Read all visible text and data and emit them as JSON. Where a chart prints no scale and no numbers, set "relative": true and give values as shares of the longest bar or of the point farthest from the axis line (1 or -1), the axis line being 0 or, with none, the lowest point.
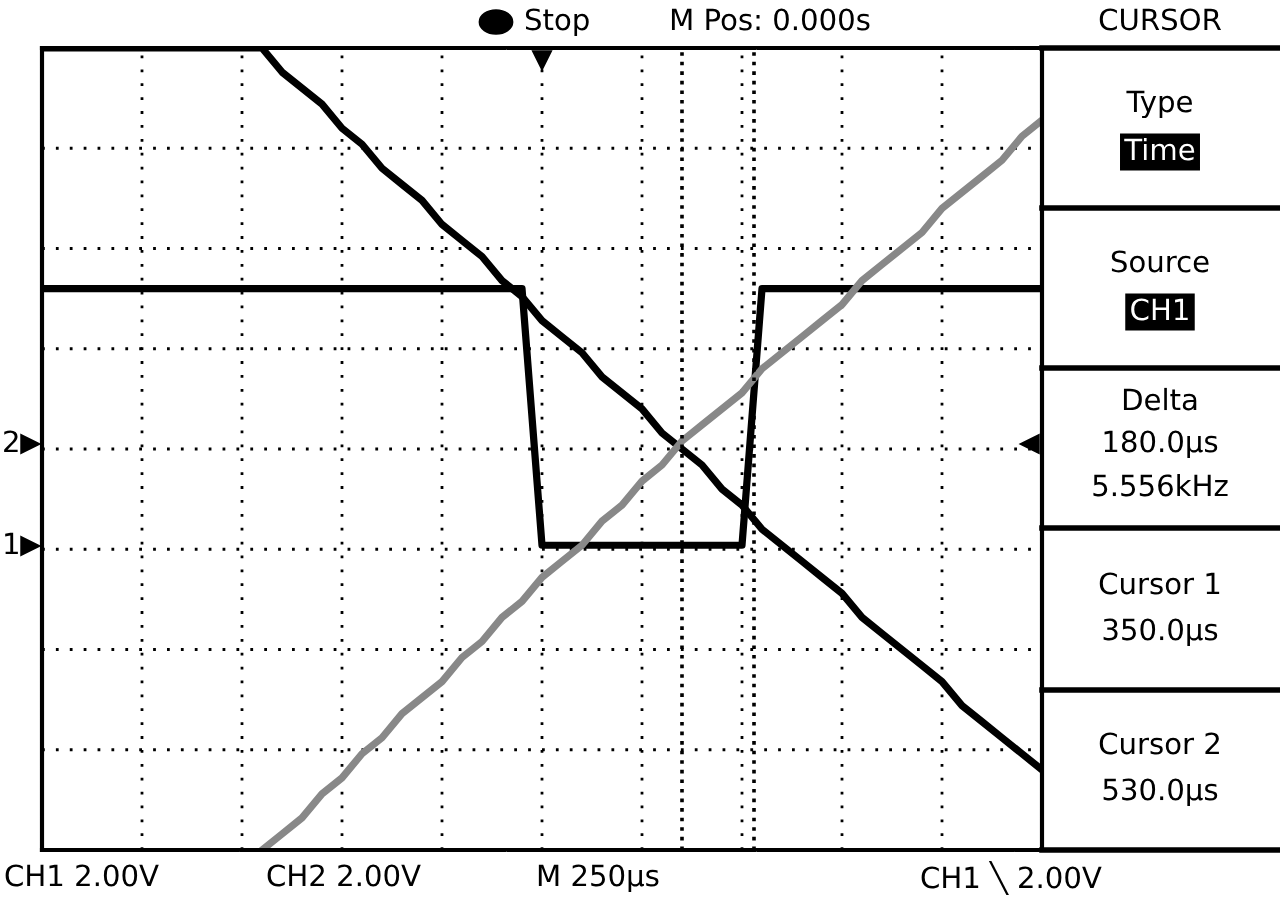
{
  "chart_data": {
    "type": "line",
    "relative": true,
    "grid": true,
    "line_style": "solid",
    "marker": "none",
    "categories": [
      null,
      null,
      null,
      null,
      null,
      null,
      null,
      null,
      null,
      null,
      null,
      null,
      null,
      null,
      null,
      null,
      null,
      null,
      null,
      null,
      null,
      null,
      null,
      null,
      null,
      null,
      null,
      null,
      null,
      null,
      null,
      null,
      null,
      null,
      null,
      null,
      null,
      null,
      null,
      null,
      null,
      null,
      null,
      null,
      null,
      null,
      null,
      null,
      null,
      null,
      null
    ],
    "series": [
      {
        "color": "#000000",
        "values": [
          0.7,
          0.7,
          0.7,
          0.7,
          0.7,
          0.7,
          0.7,
          0.7,
          0.7,
          0.7,
          0.7,
          0.7,
          0.7,
          0.7,
          0.7,
          0.7,
          0.7,
          0.7,
          0.7,
          0.7,
          0.7,
          0.7,
          0.7,
          0.7,
          0.7,
          0.38,
          0.38,
          0.38,
          0.38,
          0.38,
          0.38,
          0.38,
          0.38,
          0.38,
          0.38,
          0.38,
          0.7,
          0.7,
          0.7,
          0.7,
          0.7,
          0.7,
          0.7,
          0.7,
          0.7,
          0.7,
          0.7,
          0.7,
          0.7,
          0.7,
          0.7
        ]
      },
      {
        "color": "#000000",
        "values": [
          1.0,
          1.0,
          1.0,
          1.0,
          1.0,
          1.0,
          1.0,
          1.0,
          1.0,
          1.0,
          1.0,
          1.0,
          0.97,
          0.95,
          0.93,
          0.9,
          0.88,
          0.85,
          0.83,
          0.81,
          0.78,
          0.76,
          0.74,
          0.71,
          0.69,
          0.66,
          0.64,
          0.62,
          0.59,
          0.57,
          0.55,
          0.52,
          0.5,
          0.48,
          0.45,
          0.43,
          0.4,
          0.38,
          0.36,
          0.34,
          0.32,
          0.29,
          0.27,
          0.25,
          0.23,
          0.21,
          0.18,
          0.16,
          0.14,
          0.12,
          0.1
        ]
      },
      {
        "color": "#888888",
        "values": [
          null,
          null,
          null,
          null,
          null,
          null,
          null,
          null,
          null,
          null,
          null,
          0.0,
          0.02,
          0.04,
          0.07,
          0.09,
          0.12,
          0.14,
          0.17,
          0.19,
          0.21,
          0.24,
          0.26,
          0.29,
          0.31,
          0.34,
          0.36,
          0.38,
          0.41,
          0.43,
          0.46,
          0.48,
          0.51,
          0.53,
          0.55,
          0.57,
          0.6,
          0.62,
          0.64,
          0.66,
          0.68,
          0.71,
          0.73,
          0.75,
          0.77,
          0.8,
          0.82,
          0.84,
          0.86,
          0.89,
          0.91
        ]
      }
    ],
    "annotations": [
      "Stop",
      "M Pos: 0.000s",
      "CURSOR",
      "Type",
      "Time",
      "Source",
      "CH1",
      "Delta",
      "180.0µs",
      "5.556kHz",
      "Cursor 1",
      "350.0µs",
      "Cursor 2",
      "530.0µs",
      "CH1 2.00V",
      "CH2 2.00V",
      "M 250µs",
      "CH1 ╲ 2.00V",
      "2",
      "1"
    ]
  }
}
